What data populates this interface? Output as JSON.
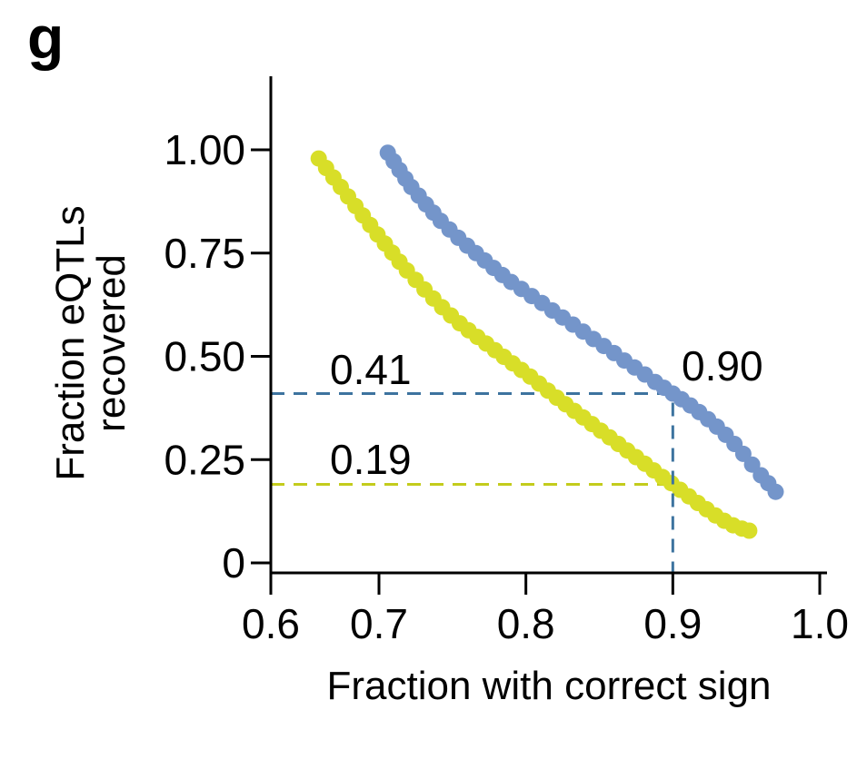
{
  "panel_label": "g",
  "chart_data": {
    "type": "scatter",
    "title": "",
    "xlabel": "Fraction with correct sign",
    "ylabel": "Fraction eQTLs recovered",
    "ylabel_lines": [
      "Fraction eQTLs",
      "recovered"
    ],
    "xlim": [
      0.6,
      1.0
    ],
    "ylim": [
      0,
      1.0
    ],
    "grid": false,
    "legend_position": "none",
    "x_ticks": [
      {
        "value": 0.6,
        "label": "0.6"
      },
      {
        "value": 0.7,
        "label": "0.7"
      },
      {
        "value": 0.8,
        "label": "0.8"
      },
      {
        "value": 0.9,
        "label": "0.9"
      },
      {
        "value": 1.0,
        "label": "1.0"
      }
    ],
    "y_ticks": [
      {
        "value": 1.0,
        "label": "1.00"
      },
      {
        "value": 0.75,
        "label": "0.75"
      },
      {
        "value": 0.5,
        "label": "0.50"
      },
      {
        "value": 0.25,
        "label": "0.25"
      },
      {
        "value": 0.0,
        "label": "0"
      }
    ],
    "series": [
      {
        "name": "blue-curve",
        "color": "#7495ca",
        "marker": "circle",
        "points": [
          [
            0.706,
            0.993
          ],
          [
            0.71,
            0.972
          ],
          [
            0.714,
            0.951
          ],
          [
            0.718,
            0.93
          ],
          [
            0.722,
            0.91
          ],
          [
            0.727,
            0.889
          ],
          [
            0.732,
            0.868
          ],
          [
            0.737,
            0.848
          ],
          [
            0.742,
            0.828
          ],
          [
            0.748,
            0.807
          ],
          [
            0.754,
            0.787
          ],
          [
            0.76,
            0.768
          ],
          [
            0.766,
            0.75
          ],
          [
            0.772,
            0.732
          ],
          [
            0.778,
            0.714
          ],
          [
            0.784,
            0.697
          ],
          [
            0.79,
            0.68
          ],
          [
            0.797,
            0.663
          ],
          [
            0.804,
            0.646
          ],
          [
            0.811,
            0.629
          ],
          [
            0.818,
            0.611
          ],
          [
            0.825,
            0.594
          ],
          [
            0.832,
            0.577
          ],
          [
            0.839,
            0.56
          ],
          [
            0.846,
            0.542
          ],
          [
            0.853,
            0.525
          ],
          [
            0.86,
            0.508
          ],
          [
            0.867,
            0.49
          ],
          [
            0.874,
            0.473
          ],
          [
            0.881,
            0.456
          ],
          [
            0.888,
            0.438
          ],
          [
            0.894,
            0.424
          ],
          [
            0.9,
            0.41
          ],
          [
            0.906,
            0.396
          ],
          [
            0.912,
            0.381
          ],
          [
            0.918,
            0.365
          ],
          [
            0.924,
            0.348
          ],
          [
            0.93,
            0.33
          ],
          [
            0.936,
            0.31
          ],
          [
            0.942,
            0.288
          ],
          [
            0.948,
            0.264
          ],
          [
            0.954,
            0.238
          ],
          [
            0.96,
            0.212
          ],
          [
            0.965,
            0.193
          ],
          [
            0.97,
            0.172
          ]
        ]
      },
      {
        "name": "yellow-curve",
        "color": "#d8de28",
        "marker": "circle",
        "points": [
          [
            0.659,
            0.979
          ],
          [
            0.664,
            0.956
          ],
          [
            0.669,
            0.933
          ],
          [
            0.674,
            0.91
          ],
          [
            0.679,
            0.887
          ],
          [
            0.684,
            0.864
          ],
          [
            0.689,
            0.841
          ],
          [
            0.694,
            0.818
          ],
          [
            0.699,
            0.795
          ],
          [
            0.704,
            0.773
          ],
          [
            0.709,
            0.751
          ],
          [
            0.714,
            0.729
          ],
          [
            0.719,
            0.708
          ],
          [
            0.725,
            0.685
          ],
          [
            0.731,
            0.662
          ],
          [
            0.737,
            0.64
          ],
          [
            0.743,
            0.619
          ],
          [
            0.749,
            0.599
          ],
          [
            0.755,
            0.58
          ],
          [
            0.761,
            0.563
          ],
          [
            0.767,
            0.547
          ],
          [
            0.773,
            0.531
          ],
          [
            0.779,
            0.515
          ],
          [
            0.785,
            0.499
          ],
          [
            0.791,
            0.483
          ],
          [
            0.797,
            0.467
          ],
          [
            0.803,
            0.451
          ],
          [
            0.809,
            0.434
          ],
          [
            0.815,
            0.417
          ],
          [
            0.821,
            0.4
          ],
          [
            0.827,
            0.384
          ],
          [
            0.833,
            0.368
          ],
          [
            0.839,
            0.352
          ],
          [
            0.845,
            0.336
          ],
          [
            0.851,
            0.32
          ],
          [
            0.857,
            0.304
          ],
          [
            0.863,
            0.288
          ],
          [
            0.869,
            0.272
          ],
          [
            0.875,
            0.256
          ],
          [
            0.881,
            0.24
          ],
          [
            0.887,
            0.224
          ],
          [
            0.893,
            0.208
          ],
          [
            0.899,
            0.193
          ],
          [
            0.905,
            0.177
          ],
          [
            0.911,
            0.161
          ],
          [
            0.917,
            0.145
          ],
          [
            0.923,
            0.13
          ],
          [
            0.929,
            0.115
          ],
          [
            0.935,
            0.102
          ],
          [
            0.941,
            0.091
          ],
          [
            0.947,
            0.083
          ],
          [
            0.952,
            0.078
          ]
        ]
      }
    ],
    "annotations": {
      "blue_recovery_label": "0.41",
      "yellow_recovery_label": "0.19",
      "sign_fraction_label": "0.90",
      "guides": [
        {
          "id": "blue-hline",
          "type": "hline",
          "y": 0.41,
          "x_to": 0.9,
          "color": "#3d739f"
        },
        {
          "id": "yellow-hline",
          "type": "hline",
          "y": 0.19,
          "x_to": 0.9,
          "color": "#c3cc1c"
        },
        {
          "id": "blue-vline",
          "type": "vline",
          "x": 0.9,
          "y_from": 0.41,
          "color": "#3d739f"
        }
      ]
    }
  }
}
